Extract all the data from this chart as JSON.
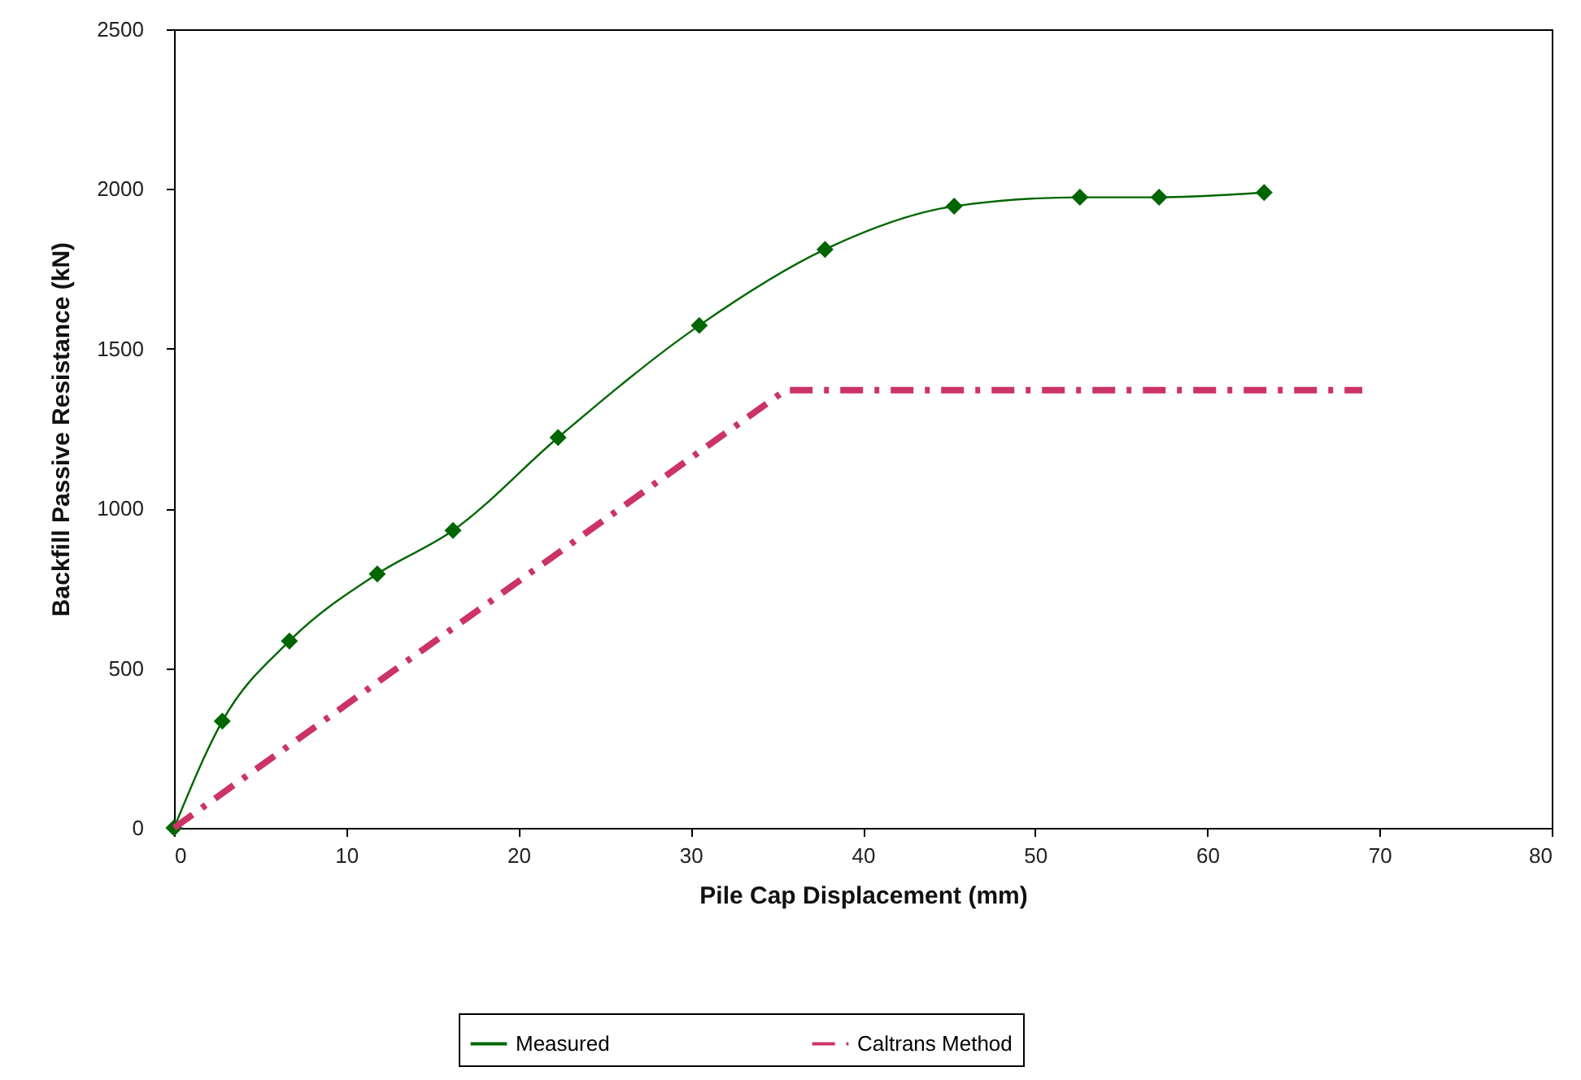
{
  "chart_data": {
    "type": "line",
    "xlabel": "Pile Cap Displacement (mm)",
    "ylabel": "Backfill Passive Resistance (kN)",
    "xlim": [
      0,
      80
    ],
    "xticks": [
      0,
      10,
      20,
      30,
      40,
      50,
      60,
      70,
      80
    ],
    "ylim": [
      0,
      2500
    ],
    "yticks": [
      0,
      500,
      1000,
      1500,
      2000,
      2500
    ],
    "grid": false,
    "legend": "bottom",
    "series": [
      {
        "name": "Measured",
        "color": "#006600",
        "marker": "diamond",
        "line_style": "solid",
        "x": [
          0,
          2.8,
          6.7,
          11.8,
          16.2,
          22.3,
          30.5,
          37.8,
          45.3,
          52.6,
          57.2,
          63.3
        ],
        "values": [
          0,
          334,
          585,
          795,
          931,
          1222,
          1573,
          1811,
          1946,
          1974,
          1974,
          1989
        ]
      },
      {
        "name": "Caltrans Method",
        "color": "#cc3366",
        "marker": "none",
        "line_style": "dashed",
        "x": [
          0,
          35.5,
          69
        ],
        "values": [
          0,
          1370,
          1370
        ]
      }
    ]
  }
}
